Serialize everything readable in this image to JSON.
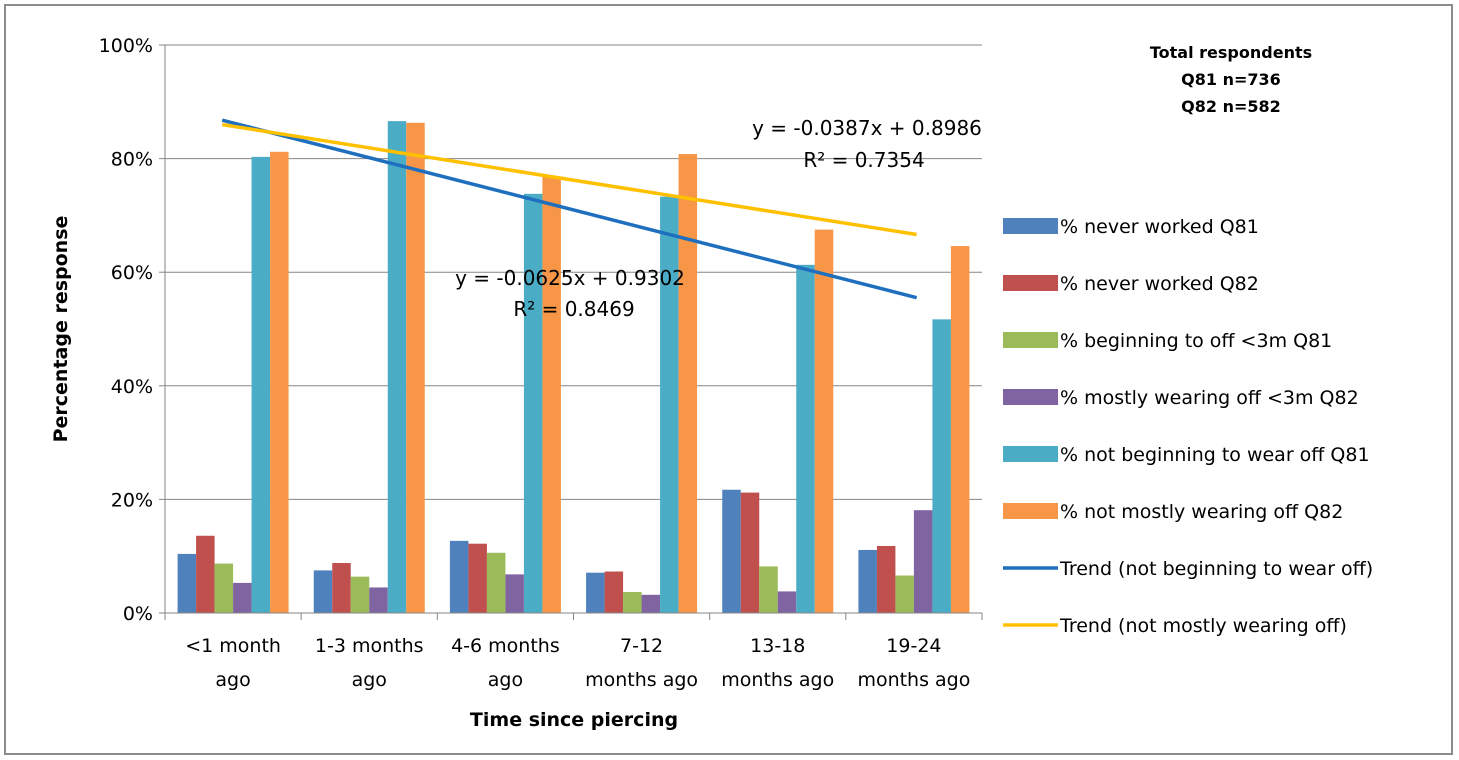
{
  "chart_data": {
    "type": "bar",
    "title": "",
    "xlabel": "Time since piercing",
    "ylabel": "Percentage response",
    "ylim": [
      0,
      1
    ],
    "yticks": [
      {
        "value": 0,
        "label": "0%"
      },
      {
        "value": 0.2,
        "label": "20%"
      },
      {
        "value": 0.4,
        "label": "40%"
      },
      {
        "value": 0.6,
        "label": "60%"
      },
      {
        "value": 0.8,
        "label": "80%"
      },
      {
        "value": 1.0,
        "label": "100%"
      }
    ],
    "categories": [
      [
        "<1 month",
        "ago"
      ],
      [
        "1-3 months",
        "ago"
      ],
      [
        "4-6 months",
        "ago"
      ],
      [
        "7-12",
        "months ago"
      ],
      [
        "13-18",
        "months ago"
      ],
      [
        "19-24",
        "months ago"
      ]
    ],
    "grid": "horizontal",
    "legend_position": "right",
    "series": [
      {
        "name": "% never worked Q81",
        "color": "#4F81BD",
        "values": [
          0.104,
          0.075,
          0.127,
          0.071,
          0.217,
          0.111
        ]
      },
      {
        "name": "% never worked Q82",
        "color": "#C0504D",
        "values": [
          0.136,
          0.088,
          0.122,
          0.073,
          0.212,
          0.118
        ]
      },
      {
        "name": "% beginning to off <3m Q81",
        "color": "#9BBB59",
        "values": [
          0.087,
          0.064,
          0.106,
          0.037,
          0.082,
          0.066
        ]
      },
      {
        "name": "% mostly wearing off <3m Q82",
        "color": "#8064A2",
        "values": [
          0.053,
          0.045,
          0.068,
          0.032,
          0.038,
          0.181
        ]
      },
      {
        "name": "% not beginning to wear off Q81",
        "color": "#4BACC6",
        "values": [
          0.803,
          0.866,
          0.738,
          0.733,
          0.613,
          0.517
        ]
      },
      {
        "name": "% not mostly wearing off Q82",
        "color": "#F79646",
        "values": [
          0.812,
          0.863,
          0.768,
          0.808,
          0.675,
          0.646
        ]
      }
    ],
    "trendlines": [
      {
        "name": "Trend (not beginning to wear off)",
        "color": "#1F6FBF",
        "slope": -0.0625,
        "intercept": 0.9302,
        "equation": "y = -0.0625x + 0.9302",
        "r2": "R² = 0.8469"
      },
      {
        "name": "Trend (not mostly wearing off)",
        "color": "#FFC000",
        "slope": -0.0387,
        "intercept": 0.8986,
        "equation": "y = -0.0387x + 0.8986",
        "r2": "R² = 0.7354"
      }
    ],
    "annotation": [
      "Total respondents",
      "Q81 n=736",
      "Q82 n=582"
    ]
  }
}
